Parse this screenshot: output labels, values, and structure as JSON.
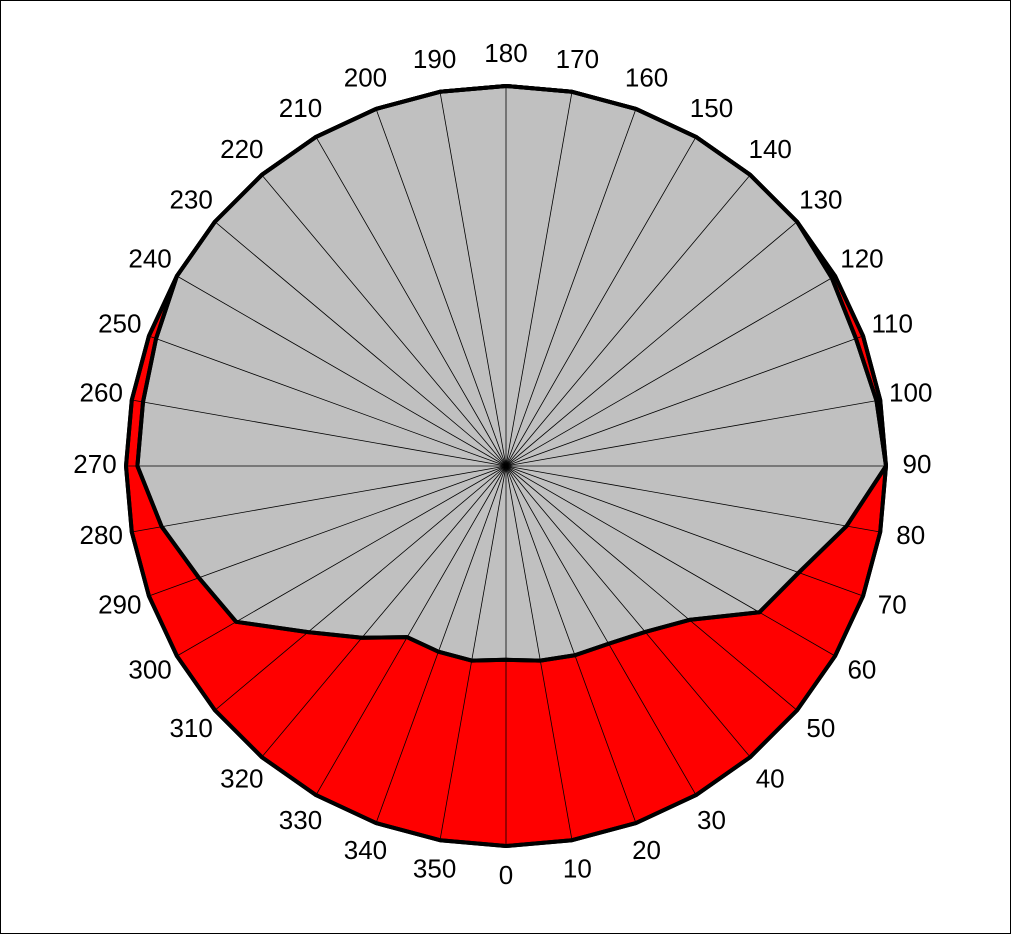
{
  "chart_data": {
    "type": "radar",
    "categories": [
      0,
      10,
      20,
      30,
      40,
      50,
      60,
      70,
      80,
      90,
      100,
      110,
      120,
      130,
      140,
      150,
      160,
      170,
      180,
      190,
      200,
      210,
      220,
      230,
      240,
      250,
      260,
      270,
      280,
      290,
      300,
      310,
      320,
      330,
      340,
      350
    ],
    "rlim": [
      0,
      1
    ],
    "series": [
      {
        "color": "#ff0000",
        "values": [
          1.0,
          1.0,
          1.0,
          1.0,
          1.0,
          1.0,
          1.0,
          1.0,
          1.0,
          1.0,
          1.0,
          1.0,
          1.0,
          1.0,
          1.0,
          1.0,
          1.0,
          1.0,
          1.0,
          1.0,
          1.0,
          1.0,
          1.0,
          1.0,
          1.0,
          1.0,
          1.0,
          1.0,
          1.0,
          1.0,
          1.0,
          1.0,
          1.0,
          1.0,
          1.0,
          1.0
        ]
      },
      {
        "color": "#c0c0c0",
        "values": [
          0.51,
          0.52,
          0.53,
          0.54,
          0.57,
          0.63,
          0.77,
          0.82,
          0.91,
          1.0,
          0.99,
          0.98,
          0.99,
          1.0,
          1.0,
          1.0,
          1.0,
          1.0,
          1.0,
          1.0,
          1.0,
          1.0,
          1.0,
          1.0,
          1.0,
          0.98,
          0.97,
          0.97,
          0.92,
          0.86,
          0.82,
          0.68,
          0.59,
          0.52,
          0.52,
          0.52
        ]
      }
    ]
  }
}
